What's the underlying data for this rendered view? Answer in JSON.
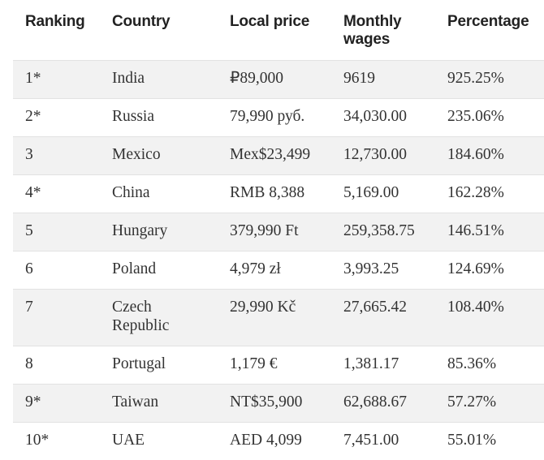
{
  "headers": {
    "ranking": "Ranking",
    "country": "Country",
    "local_price": "Local price",
    "monthly_wages": "Monthly wages",
    "percentage": "Percentage"
  },
  "rows": [
    {
      "rank": "1*",
      "country": "India",
      "price": "₽89,000",
      "wages": "9619",
      "pct": "925.25%"
    },
    {
      "rank": "2*",
      "country": "Russia",
      "price": "79,990 руб.",
      "wages": "34,030.00",
      "pct": "235.06%"
    },
    {
      "rank": "3",
      "country": "Mexico",
      "price": "Mex$23,499",
      "wages": "12,730.00",
      "pct": "184.60%"
    },
    {
      "rank": "4*",
      "country": "China",
      "price": "RMB 8,388",
      "wages": "5,169.00",
      "pct": "162.28%"
    },
    {
      "rank": "5",
      "country": "Hungary",
      "price": "379,990 Ft",
      "wages": "259,358.75",
      "pct": "146.51%"
    },
    {
      "rank": "6",
      "country": "Poland",
      "price": "4,979 zł",
      "wages": "3,993.25",
      "pct": "124.69%"
    },
    {
      "rank": "7",
      "country": "Czech Republic",
      "price": "29,990 Kč",
      "wages": "27,665.42",
      "pct": "108.40%"
    },
    {
      "rank": "8",
      "country": "Portugal",
      "price": "1,179 €",
      "wages": "1,381.17",
      "pct": "85.36%"
    },
    {
      "rank": "9*",
      "country": "Taiwan",
      "price": "NT$35,900",
      "wages": "62,688.67",
      "pct": "57.27%"
    },
    {
      "rank": "10*",
      "country": "UAE",
      "price": "AED 4,099",
      "wages": "7,451.00",
      "pct": "55.01%"
    }
  ]
}
